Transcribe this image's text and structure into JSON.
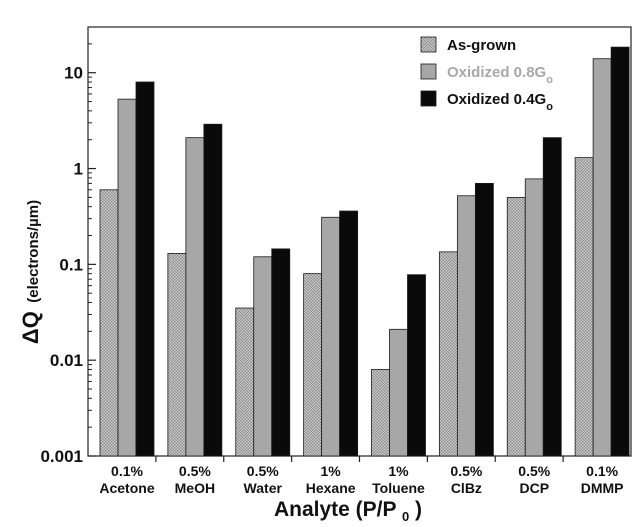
{
  "chart_data": {
    "type": "bar",
    "scale": "log",
    "ylim": [
      0.001,
      30
    ],
    "yticks": [
      "0.001",
      "0.01",
      "0.1",
      "1",
      "10"
    ],
    "ylabel": "ΔQ",
    "ylabel_unit": "(electrons/µm)",
    "xlabel": "Analyte (P/P",
    "xlabel_sub": "0",
    "xlabel_close": ")",
    "categories": [
      {
        "line1": "0.1%",
        "line2": "Acetone"
      },
      {
        "line1": "0.5%",
        "line2": "MeOH"
      },
      {
        "line1": "0.5%",
        "line2": "Water"
      },
      {
        "line1": "1%",
        "line2": "Hexane"
      },
      {
        "line1": "1%",
        "line2": "Toluene"
      },
      {
        "line1": "0.5%",
        "line2": "ClBz"
      },
      {
        "line1": "0.5%",
        "line2": "DCP"
      },
      {
        "line1": "0.1%",
        "line2": "DMMP"
      }
    ],
    "series": [
      {
        "name": "As-grown",
        "name_sub": "",
        "color": "#b4b4b4",
        "pattern": "dotted",
        "values": [
          0.6,
          0.13,
          0.035,
          0.08,
          0.008,
          0.135,
          0.5,
          1.3
        ]
      },
      {
        "name": "Oxidized 0.8G",
        "name_sub": "o",
        "color": "#a7a7a7",
        "text_color": "#a8a8a8",
        "values": [
          5.3,
          2.1,
          0.12,
          0.31,
          0.021,
          0.52,
          0.78,
          14
        ]
      },
      {
        "name": "Oxidized 0.4G",
        "name_sub": "o",
        "color": "#0a0a0a",
        "values": [
          8.0,
          2.9,
          0.145,
          0.36,
          0.078,
          0.7,
          2.1,
          18.5
        ]
      }
    ],
    "legend_position": "top-right",
    "grid": false
  }
}
